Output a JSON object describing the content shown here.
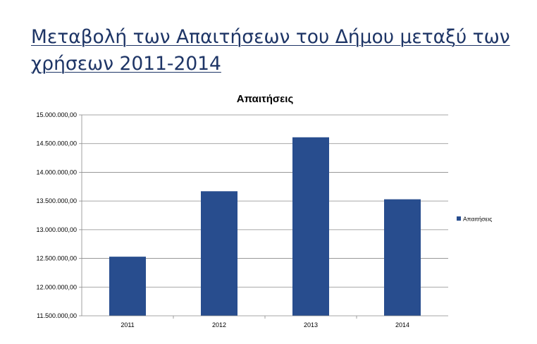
{
  "page": {
    "heading": "Μεταβολή των Απαιτήσεων του Δήμου μεταξύ των χρήσεων 2011-2014"
  },
  "chart_data": {
    "type": "bar",
    "title": "Απαιτήσεις",
    "xlabel": "",
    "ylabel": "",
    "categories": [
      "2011",
      "2012",
      "2013",
      "2014"
    ],
    "series": [
      {
        "name": "Απαιτήσεις",
        "color": "#284d8e",
        "values": [
          12530000,
          13670000,
          14610000,
          13530000
        ]
      }
    ],
    "ylim": [
      11500000,
      15000000
    ],
    "y_ticks": [
      {
        "value": 11500000,
        "label": "11.500.000,00"
      },
      {
        "value": 12000000,
        "label": "12.000.000,00"
      },
      {
        "value": 12500000,
        "label": "12.500.000,00"
      },
      {
        "value": 13000000,
        "label": "13.000.000,00"
      },
      {
        "value": 13500000,
        "label": "13.500.000,00"
      },
      {
        "value": 14000000,
        "label": "14.000.000,00"
      },
      {
        "value": 14500000,
        "label": "14.500.000,00"
      },
      {
        "value": 15000000,
        "label": "15.000.000,00"
      }
    ],
    "grid": true,
    "legend": "right"
  }
}
